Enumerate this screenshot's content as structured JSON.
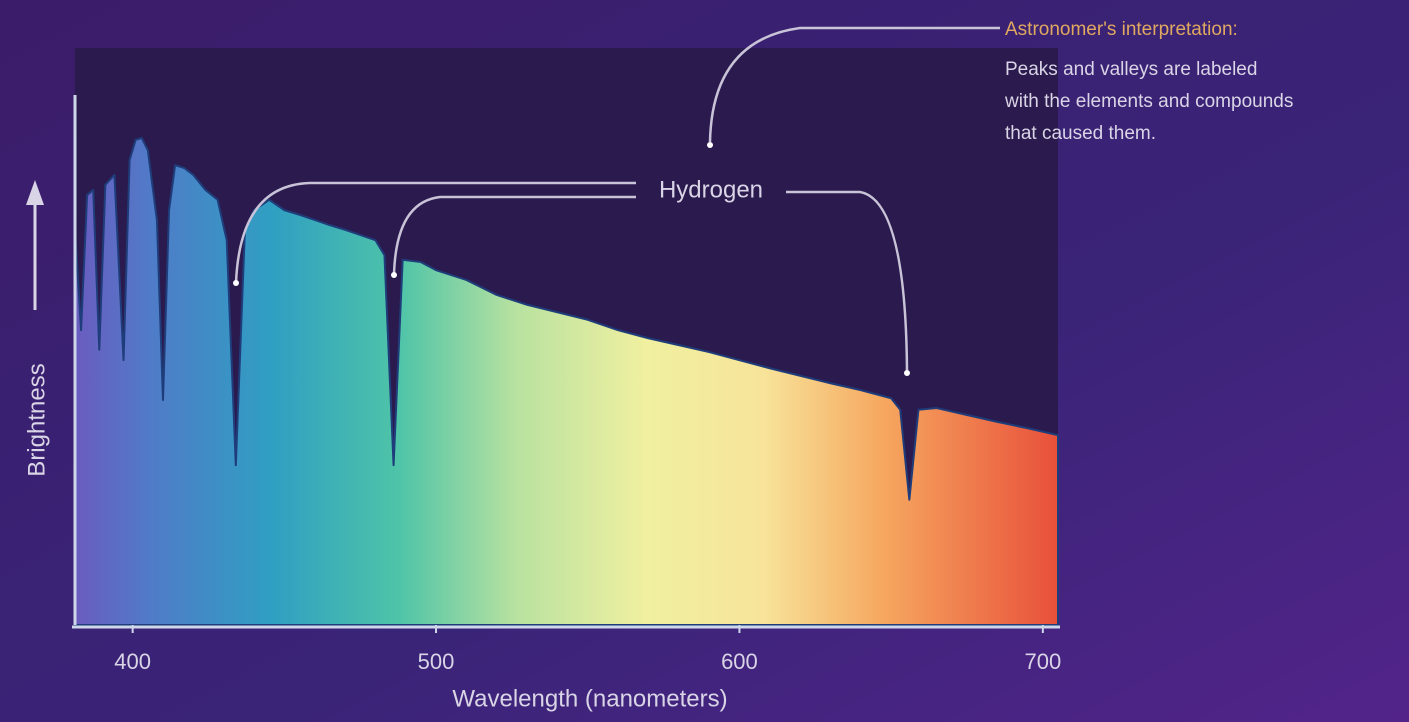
{
  "chart_data": {
    "type": "area",
    "ylabel": "Brightness",
    "xlabel": "Wavelength (nanometers)",
    "annotations": {
      "hydrogen": "Hydrogen",
      "interpretation_title": "Astronomer's interpretation:",
      "interpretation_lines": [
        "Peaks and valleys are labeled",
        "with the elements and compounds",
        "that caused them."
      ]
    },
    "x": [
      381,
      383,
      385,
      387,
      389,
      391,
      394,
      397,
      399,
      401,
      403,
      405,
      408,
      410,
      412,
      414,
      417,
      420,
      424,
      428,
      431,
      434,
      437,
      440,
      445,
      450,
      455,
      460,
      465,
      470,
      475,
      480,
      483,
      486,
      489,
      495,
      500,
      510,
      520,
      530,
      540,
      550,
      560,
      570,
      580,
      590,
      600,
      610,
      620,
      630,
      640,
      650,
      653,
      656,
      659,
      665,
      675,
      685,
      695,
      705
    ],
    "values": [
      68.6,
      51.1,
      74.5,
      75.4,
      47.7,
      76.3,
      78.0,
      45.9,
      80.6,
      84.1,
      84.4,
      82.3,
      70.2,
      39.0,
      71.9,
      79.7,
      79.2,
      78.0,
      75.4,
      73.7,
      66.7,
      27.7,
      68.5,
      71.9,
      73.7,
      71.9,
      71.1,
      70.2,
      69.3,
      68.5,
      67.6,
      66.7,
      64.1,
      27.7,
      63.3,
      62.9,
      61.5,
      59.8,
      57.2,
      55.5,
      54.2,
      52.9,
      51.1,
      49.7,
      48.5,
      47.3,
      45.9,
      44.5,
      43.2,
      41.9,
      40.7,
      39.3,
      37.3,
      21.7,
      37.3,
      37.6,
      36.4,
      35.2,
      34.1,
      32.9
    ],
    "xlim": [
      381,
      705
    ],
    "ylim": [
      0,
      100
    ],
    "xticks": [
      400,
      500,
      600,
      700
    ]
  }
}
